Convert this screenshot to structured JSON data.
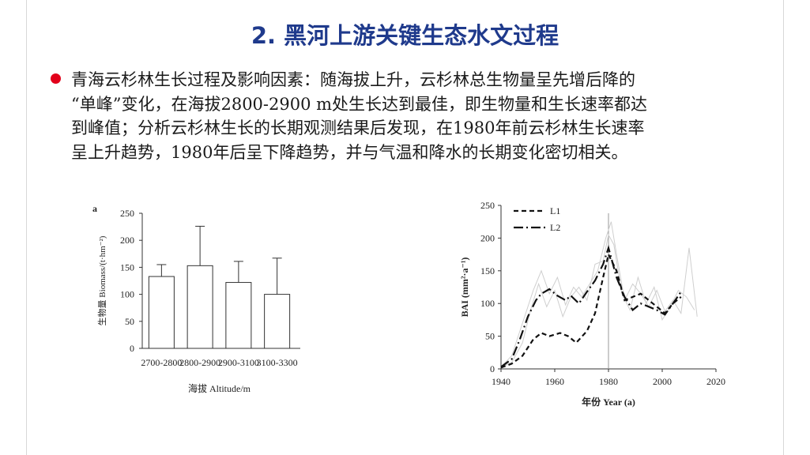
{
  "slide": {
    "title": "2. 黑河上游关键生态水文过程",
    "bullet_lines": [
      "青海云杉林生长过程及影响因素：随海拔上升，云杉林总生物量呈先增后降的",
      "“单峰”变化，在海拔2800-2900 m处生长达到最佳，即生物量和生长速率都达",
      "到峰值；分析云杉林生长的长期观测结果后发现，在1980年前云杉林生长速率",
      "呈上升趋势，1980年后呈下降趋势，并与气温和降水的长期变化密切相关。"
    ],
    "colors": {
      "title": "#1f3a8c",
      "bullet": "#e2001a"
    }
  },
  "chart_data": [
    {
      "type": "bar",
      "panel_label": "a",
      "categories": [
        "2700-2800",
        "2800-2900",
        "2900-3100",
        "3100-3300"
      ],
      "values": [
        133,
        153,
        122,
        100
      ],
      "error_upper": [
        155,
        226,
        161,
        167
      ],
      "xlabel": "海拔 Altitude/m",
      "ylabel": "生物量 Biomass/(t·hm⁻²)",
      "ylim": [
        0,
        250
      ],
      "yticks": [
        0,
        50,
        100,
        150,
        200,
        250
      ],
      "grid": false
    },
    {
      "type": "line",
      "xlabel": "年份 Year (a)",
      "ylabel": "BAI (mm²·a⁻¹)",
      "xlim": [
        1940,
        2020
      ],
      "ylim": [
        0,
        250
      ],
      "xticks": [
        1940,
        1960,
        1980,
        2000,
        2020
      ],
      "yticks": [
        0,
        50,
        100,
        150,
        200,
        250
      ],
      "legend": "top-left",
      "reference_line_x": 1980,
      "series": [
        {
          "name": "L1",
          "style": "dashed",
          "x": [
            1940,
            1944,
            1948,
            1952,
            1955,
            1958,
            1962,
            1965,
            1968,
            1972,
            1975,
            1978,
            1980,
            1983,
            1986,
            1989,
            1992,
            1995,
            1998,
            2001,
            2004,
            2007
          ],
          "y": [
            2,
            8,
            20,
            45,
            55,
            50,
            55,
            50,
            40,
            58,
            85,
            140,
            175,
            150,
            105,
            110,
            115,
            105,
            95,
            85,
            100,
            110
          ]
        },
        {
          "name": "L2",
          "style": "dashdot",
          "x": [
            1940,
            1944,
            1947,
            1950,
            1953,
            1955,
            1958,
            1961,
            1964,
            1966,
            1969,
            1972,
            1975,
            1978,
            1980,
            1983,
            1986,
            1989,
            1992,
            1995,
            1998,
            2001,
            2004,
            2007
          ],
          "y": [
            3,
            15,
            45,
            80,
            105,
            115,
            122,
            112,
            105,
            112,
            100,
            118,
            135,
            160,
            185,
            140,
            110,
            90,
            100,
            95,
            90,
            83,
            100,
            118
          ]
        },
        {
          "name": "",
          "style": "thin-gray",
          "x": [
            1940,
            1944,
            1948,
            1952,
            1955,
            1958,
            1961,
            1964,
            1967,
            1970,
            1973,
            1976,
            1979,
            1981,
            1983,
            1986,
            1989,
            1992,
            1995,
            1998,
            2001,
            2004,
            2007,
            2010,
            2013
          ],
          "y": [
            3,
            20,
            70,
            120,
            150,
            115,
            140,
            98,
            125,
            110,
            130,
            150,
            200,
            225,
            175,
            105,
            130,
            115,
            95,
            120,
            88,
            105,
            85,
            185,
            80
          ]
        },
        {
          "name": "",
          "style": "thin-gray",
          "x": [
            1940,
            1944,
            1948,
            1951,
            1954,
            1957,
            1960,
            1963,
            1966,
            1969,
            1972,
            1975,
            1978,
            1980,
            1982,
            1985,
            1988,
            1991,
            1994,
            1997,
            2000,
            2003,
            2006,
            2009,
            2012
          ],
          "y": [
            2,
            10,
            40,
            90,
            130,
            95,
            120,
            80,
            110,
            125,
            105,
            160,
            165,
            205,
            190,
            115,
            90,
            140,
            100,
            125,
            75,
            95,
            120,
            110,
            90
          ]
        }
      ]
    }
  ]
}
